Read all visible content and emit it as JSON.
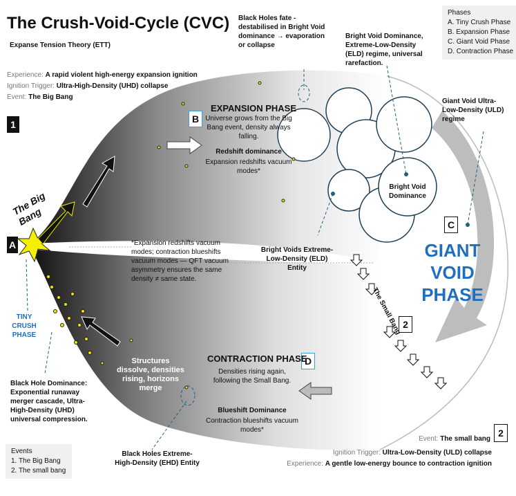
{
  "title": "The Crush-Void-Cycle (CVC)",
  "subtitle": "Expanse Tension Theory (ETT)",
  "event1": {
    "experience_label": "Experience:",
    "experience": "A rapid violent high-energy expansion ignition",
    "trigger_label": "Ignition Trigger:",
    "trigger": "Ultra-High-Density (UHD) collapse",
    "event_label": "Event:",
    "event": "The Big Bang",
    "badge": "1"
  },
  "event2": {
    "event_label": "Event:",
    "event": "The small bang",
    "trigger_label": "Ignition Trigger:",
    "trigger": "Ultra-Low-Density (ULD) collapse",
    "experience_label": "Experience:",
    "experience": "A gentle low-energy bounce to contraction ignition",
    "badge": "2"
  },
  "phases_panel": {
    "title": "Phases",
    "items": [
      "A.  Tiny Crush Phase",
      "B.  Expansion Phase",
      "C.  Giant Void Phase",
      "D.  Contraction Phase"
    ]
  },
  "events_panel": {
    "title": "Events",
    "items": [
      "1.  The Big Bang",
      "2.  The small bang"
    ]
  },
  "expansion": {
    "badge": "B",
    "title": "EXPANSION PHASE",
    "desc": "Universe grows from the Big Bang event, density always falling.",
    "redshift_title": "Redshift dominance",
    "redshift_desc": "Expansion redshifts vacuum modes*"
  },
  "contraction": {
    "badge": "D",
    "title": "CONTRACTION PHASE",
    "desc": "Densities rising again, following the Small Bang.",
    "blueshift_title": "Blueshift Dominance",
    "blueshift_desc": "Contraction blueshifts vacuum modes*"
  },
  "giant_void": {
    "badge": "C",
    "title": "GIANT VOID PHASE",
    "label": "Giant Void Ultra-Low-Density (ULD) regime"
  },
  "tiny_crush": {
    "badge": "A",
    "label": "TINY CRUSH PHASE"
  },
  "big_bang_label": "The Big Bang",
  "big_bang_badge": "1",
  "small_bang_label": "The Small Bang",
  "small_bang_badge": "2",
  "black_holes_fate": "Black Holes fate - destabilised in Bright Void dominance → evaporation or collapse",
  "bright_void_dominance_top": "Bright Void Dominance, Extreme-Low-Density (ELD) regime, universal rarefaction.",
  "bright_void_dominance": "Bright Void Dominance",
  "bright_voids_entity": "Bright Voids Extreme-Low-Density (ELD) Entity",
  "footnote": "*Expansion redshifts vacuum modes; contraction blueshifts vacuum modes — QFT vacuum asymmetry ensures the same density ≠ same state.",
  "structures_dissolve": "Structures dissolve, densities rising, horizons merge",
  "black_hole_dominance": "Black Hole Dominance: Exponential runaway merger cascade, Ultra-High-Density (UHD) universal compression.",
  "black_holes_entity": "Black Holes Extreme-High-Density (EHD) Entity",
  "colors": {
    "accent_blue": "#1f6fbf",
    "dashed_leader": "#1f5f7f",
    "dot_yellow": "#f2e600",
    "burst_yellow": "#f5ef00"
  }
}
